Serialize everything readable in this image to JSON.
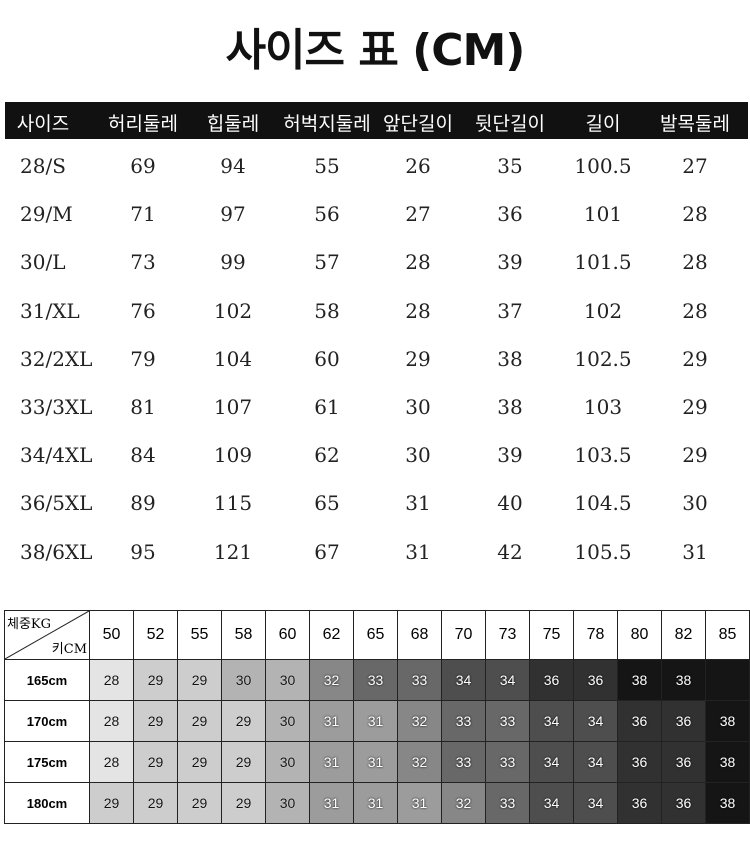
{
  "title": "사이즈 표 (CM)",
  "size_table": {
    "headers": [
      "사이즈",
      "허리둘레",
      "힙둘레",
      "허벅지둘레",
      "앞단길이",
      "뒷단길이",
      "길이",
      "발목둘레"
    ],
    "rows": [
      [
        "28/S",
        "69",
        "94",
        "55",
        "26",
        "35",
        "100.5",
        "27"
      ],
      [
        "29/M",
        "71",
        "97",
        "56",
        "27",
        "36",
        "101",
        "28"
      ],
      [
        "30/L",
        "73",
        "99",
        "57",
        "28",
        "39",
        "101.5",
        "28"
      ],
      [
        "31/XL",
        "76",
        "102",
        "58",
        "28",
        "37",
        "102",
        "28"
      ],
      [
        "32/2XL",
        "79",
        "104",
        "60",
        "29",
        "38",
        "102.5",
        "29"
      ],
      [
        "33/3XL",
        "81",
        "107",
        "61",
        "30",
        "38",
        "103",
        "29"
      ],
      [
        "34/4XL",
        "84",
        "109",
        "62",
        "30",
        "39",
        "103.5",
        "29"
      ],
      [
        "36/5XL",
        "89",
        "115",
        "65",
        "31",
        "40",
        "104.5",
        "30"
      ],
      [
        "38/6XL",
        "95",
        "121",
        "67",
        "31",
        "42",
        "105.5",
        "31"
      ]
    ]
  },
  "weight_table": {
    "corner_top": "체중KG",
    "corner_bottom": "키CM",
    "weights": [
      "50",
      "52",
      "55",
      "58",
      "60",
      "62",
      "65",
      "68",
      "70",
      "73",
      "75",
      "78",
      "80",
      "82",
      "85"
    ],
    "rows": [
      {
        "height": "165cm",
        "values": [
          "28",
          "29",
          "29",
          "30",
          "30",
          "32",
          "33",
          "33",
          "34",
          "34",
          "36",
          "36",
          "38",
          "38",
          ""
        ]
      },
      {
        "height": "170cm",
        "values": [
          "28",
          "29",
          "29",
          "29",
          "30",
          "31",
          "31",
          "32",
          "33",
          "33",
          "34",
          "34",
          "36",
          "36",
          "38"
        ]
      },
      {
        "height": "175cm",
        "values": [
          "28",
          "29",
          "29",
          "29",
          "30",
          "31",
          "31",
          "32",
          "33",
          "33",
          "34",
          "34",
          "36",
          "36",
          "38"
        ]
      },
      {
        "height": "180cm",
        "values": [
          "29",
          "29",
          "29",
          "29",
          "30",
          "31",
          "31",
          "31",
          "32",
          "33",
          "34",
          "34",
          "36",
          "36",
          "38"
        ]
      }
    ],
    "shade_colors": {
      "28": "#e4e4e4",
      "29": "#cdcdcd",
      "30": "#b3b3b3",
      "31": "#9c9c9c",
      "32": "#878787",
      "33": "#686868",
      "34": "#4e4e4e",
      "36": "#313131",
      "38": "#151515",
      "": "#151515"
    }
  }
}
